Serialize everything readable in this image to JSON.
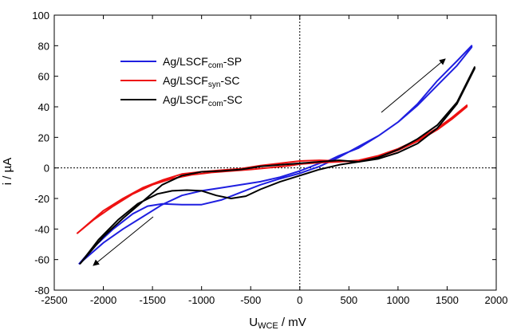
{
  "chart_data": {
    "type": "line",
    "xlabel_main": "U",
    "xlabel_sub": "WCE",
    "xlabel_unit": " / mV",
    "ylabel": "i / µA",
    "xlim": [
      -2500,
      2000
    ],
    "ylim": [
      -80,
      100
    ],
    "xticks": [
      -2500,
      -2000,
      -1500,
      -1000,
      -500,
      0,
      500,
      1000,
      1500,
      2000
    ],
    "yticks": [
      -80,
      -60,
      -40,
      -20,
      0,
      20,
      40,
      60,
      80,
      100
    ],
    "grid": false,
    "legend_position": "top-left",
    "series": [
      {
        "name_pre": "Ag/LSCF",
        "name_sub": "com",
        "name_post": "-SP",
        "color": "#1f1fe0",
        "points": [
          [
            -2250,
            -63
          ],
          [
            -2100,
            -52
          ],
          [
            -1900,
            -40
          ],
          [
            -1700,
            -30
          ],
          [
            -1550,
            -25
          ],
          [
            -1400,
            -23.5
          ],
          [
            -1200,
            -24
          ],
          [
            -1000,
            -24
          ],
          [
            -800,
            -21
          ],
          [
            -600,
            -16
          ],
          [
            -400,
            -11
          ],
          [
            -200,
            -7
          ],
          [
            0,
            -3.5
          ],
          [
            200,
            1
          ],
          [
            400,
            7
          ],
          [
            600,
            14
          ],
          [
            800,
            21
          ],
          [
            1000,
            30
          ],
          [
            1200,
            42
          ],
          [
            1400,
            57
          ],
          [
            1600,
            70
          ],
          [
            1750,
            80
          ],
          [
            1750,
            79
          ],
          [
            1600,
            67
          ],
          [
            1400,
            54
          ],
          [
            1200,
            41
          ],
          [
            1000,
            30
          ],
          [
            800,
            21
          ],
          [
            600,
            13
          ],
          [
            400,
            8
          ],
          [
            300,
            5
          ],
          [
            200,
            3
          ],
          [
            0,
            -2
          ],
          [
            -200,
            -6
          ],
          [
            -400,
            -9
          ],
          [
            -600,
            -11
          ],
          [
            -800,
            -13
          ],
          [
            -1000,
            -15
          ],
          [
            -1200,
            -18
          ],
          [
            -1400,
            -24
          ],
          [
            -1600,
            -32
          ],
          [
            -1800,
            -40
          ],
          [
            -2000,
            -49
          ],
          [
            -2250,
            -63
          ]
        ]
      },
      {
        "name_pre": "Ag/LSCF",
        "name_sub": "syn",
        "name_post": "-SC",
        "color": "#ee1111",
        "points": [
          [
            -2270,
            -43
          ],
          [
            -2100,
            -34
          ],
          [
            -1900,
            -25
          ],
          [
            -1700,
            -17
          ],
          [
            -1500,
            -11
          ],
          [
            -1300,
            -7
          ],
          [
            -1100,
            -4.5
          ],
          [
            -900,
            -3
          ],
          [
            -700,
            -2
          ],
          [
            -500,
            -1
          ],
          [
            -300,
            0.2
          ],
          [
            -100,
            1.5
          ],
          [
            0,
            2.5
          ],
          [
            200,
            3.5
          ],
          [
            400,
            4
          ],
          [
            600,
            5
          ],
          [
            800,
            8
          ],
          [
            1000,
            12.5
          ],
          [
            1200,
            18.5
          ],
          [
            1400,
            26
          ],
          [
            1550,
            33
          ],
          [
            1700,
            41
          ],
          [
            1700,
            40
          ],
          [
            1550,
            32
          ],
          [
            1400,
            25
          ],
          [
            1200,
            17.5
          ],
          [
            1000,
            11.5
          ],
          [
            800,
            7
          ],
          [
            600,
            4
          ],
          [
            400,
            4.5
          ],
          [
            200,
            5
          ],
          [
            0,
            4.5
          ],
          [
            -200,
            3
          ],
          [
            -400,
            1.5
          ],
          [
            -600,
            -0.5
          ],
          [
            -800,
            -1.5
          ],
          [
            -1000,
            -2.5
          ],
          [
            -1200,
            -4
          ],
          [
            -1400,
            -8
          ],
          [
            -1600,
            -13
          ],
          [
            -1800,
            -20
          ],
          [
            -2000,
            -28
          ],
          [
            -2270,
            -43
          ]
        ]
      },
      {
        "name_pre": "Ag/LSCF",
        "name_sub": "com",
        "name_post": "-SC",
        "color": "#000000",
        "points": [
          [
            -2240,
            -63
          ],
          [
            -2050,
            -47
          ],
          [
            -1850,
            -34
          ],
          [
            -1650,
            -23.5
          ],
          [
            -1450,
            -17
          ],
          [
            -1300,
            -15
          ],
          [
            -1150,
            -14.5
          ],
          [
            -1000,
            -15
          ],
          [
            -850,
            -18
          ],
          [
            -700,
            -20
          ],
          [
            -550,
            -18.5
          ],
          [
            -400,
            -14
          ],
          [
            -200,
            -9
          ],
          [
            0,
            -5
          ],
          [
            200,
            -1
          ],
          [
            400,
            2
          ],
          [
            600,
            4
          ],
          [
            800,
            7
          ],
          [
            1000,
            12
          ],
          [
            1200,
            19
          ],
          [
            1400,
            28
          ],
          [
            1600,
            43
          ],
          [
            1780,
            66
          ],
          [
            1780,
            65
          ],
          [
            1600,
            42
          ],
          [
            1400,
            26
          ],
          [
            1200,
            16
          ],
          [
            1000,
            10
          ],
          [
            800,
            6
          ],
          [
            600,
            4
          ],
          [
            400,
            5
          ],
          [
            200,
            4
          ],
          [
            0,
            3
          ],
          [
            -200,
            2
          ],
          [
            -400,
            1
          ],
          [
            -600,
            -1
          ],
          [
            -800,
            -2
          ],
          [
            -1000,
            -2.5
          ],
          [
            -1200,
            -5
          ],
          [
            -1400,
            -11
          ],
          [
            -1600,
            -22
          ],
          [
            -1800,
            -33
          ],
          [
            -2000,
            -45
          ],
          [
            -2240,
            -63
          ]
        ]
      }
    ]
  }
}
